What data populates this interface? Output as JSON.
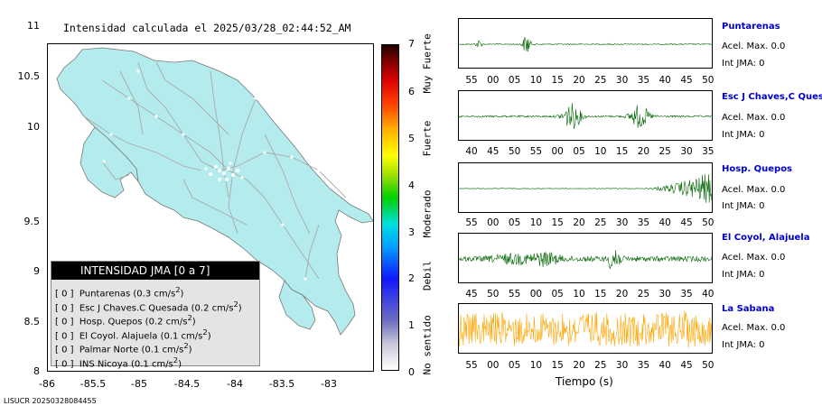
{
  "map": {
    "title": "Intensidad calculada el 2025/03/28_02:44:52_AM",
    "y_ticks": [
      "11",
      "10.5",
      "10",
      "9.5",
      "9",
      "8.5",
      "8"
    ],
    "x_ticks": [
      "-86",
      "-85.5",
      "-85",
      "-84.5",
      "-84",
      "-83.5",
      "-83"
    ],
    "land_color": "#b4ecee",
    "road_color": "#b0b0b0"
  },
  "legend": {
    "title": "INTENSIDAD JMA [0 a 7]",
    "rows": [
      {
        "int": "[ 0 ]",
        "name": "Puntarenas",
        "value": "(0.3 cm/s",
        "sup": "2",
        "close": ")"
      },
      {
        "int": "[ 0 ]",
        "name": "Esc J Chaves.C Quesada",
        "value": "(0.2 cm/s",
        "sup": "2",
        "close": ")"
      },
      {
        "int": "[ 0 ]",
        "name": "Hosp. Quepos",
        "value": "(0.2 cm/s",
        "sup": "2",
        "close": ")"
      },
      {
        "int": "[ 0 ]",
        "name": "El Coyol. Alajuela",
        "value": "(0.1 cm/s",
        "sup": "2",
        "close": ")"
      },
      {
        "int": "[ 0 ]",
        "name": "Palmar Norte",
        "value": "(0.1 cm/s",
        "sup": "2",
        "close": ")"
      },
      {
        "int": "[ 0 ]",
        "name": "INS Nicoya",
        "value": "(0.1 cm/s",
        "sup": "2",
        "close": ")"
      }
    ]
  },
  "colorbar": {
    "ticks": [
      "7",
      "6",
      "5",
      "4",
      "3",
      "2",
      "1",
      "0"
    ],
    "labels": [
      "Muy Fuerte",
      "Fuerte",
      "Moderado",
      "Debil",
      "No sentido"
    ]
  },
  "traces": [
    {
      "station": "Puntarenas",
      "acel": "Acel. Max. 0.0",
      "int": "Int JMA: 0",
      "color": "#006400",
      "ticks": [
        "55",
        "00",
        "05",
        "10",
        "15",
        "20",
        "25",
        "30",
        "35",
        "40",
        "45",
        "50"
      ]
    },
    {
      "station": "Esc J Chaves,C Quesada",
      "acel": "Acel. Max. 0.0",
      "int": "Int JMA: 0",
      "color": "#006400",
      "ticks": [
        "40",
        "45",
        "50",
        "55",
        "00",
        "05",
        "10",
        "15",
        "20",
        "25",
        "30",
        "35"
      ]
    },
    {
      "station": "Hosp. Quepos",
      "acel": "Acel. Max. 0.0",
      "int": "Int JMA: 0",
      "color": "#006400",
      "ticks": [
        "55",
        "00",
        "05",
        "10",
        "15",
        "20",
        "25",
        "30",
        "35",
        "40",
        "45",
        "50"
      ]
    },
    {
      "station": "El Coyol, Alajuela",
      "acel": "Acel. Max. 0.0",
      "int": "Int JMA: 0",
      "color": "#006400",
      "ticks": [
        "45",
        "50",
        "55",
        "00",
        "05",
        "10",
        "15",
        "20",
        "25",
        "30",
        "35",
        "40"
      ]
    },
    {
      "station": "La Sabana",
      "acel": "Acel. Max. 0.0",
      "int": "Int JMA: 0",
      "color": "#ffa500",
      "ticks": [
        "55",
        "00",
        "05",
        "10",
        "15",
        "20",
        "25",
        "30",
        "35",
        "40",
        "45",
        "50"
      ]
    }
  ],
  "traces_xlabel": "Tiempo (s)",
  "footer": "LISUCR 20250328084455"
}
